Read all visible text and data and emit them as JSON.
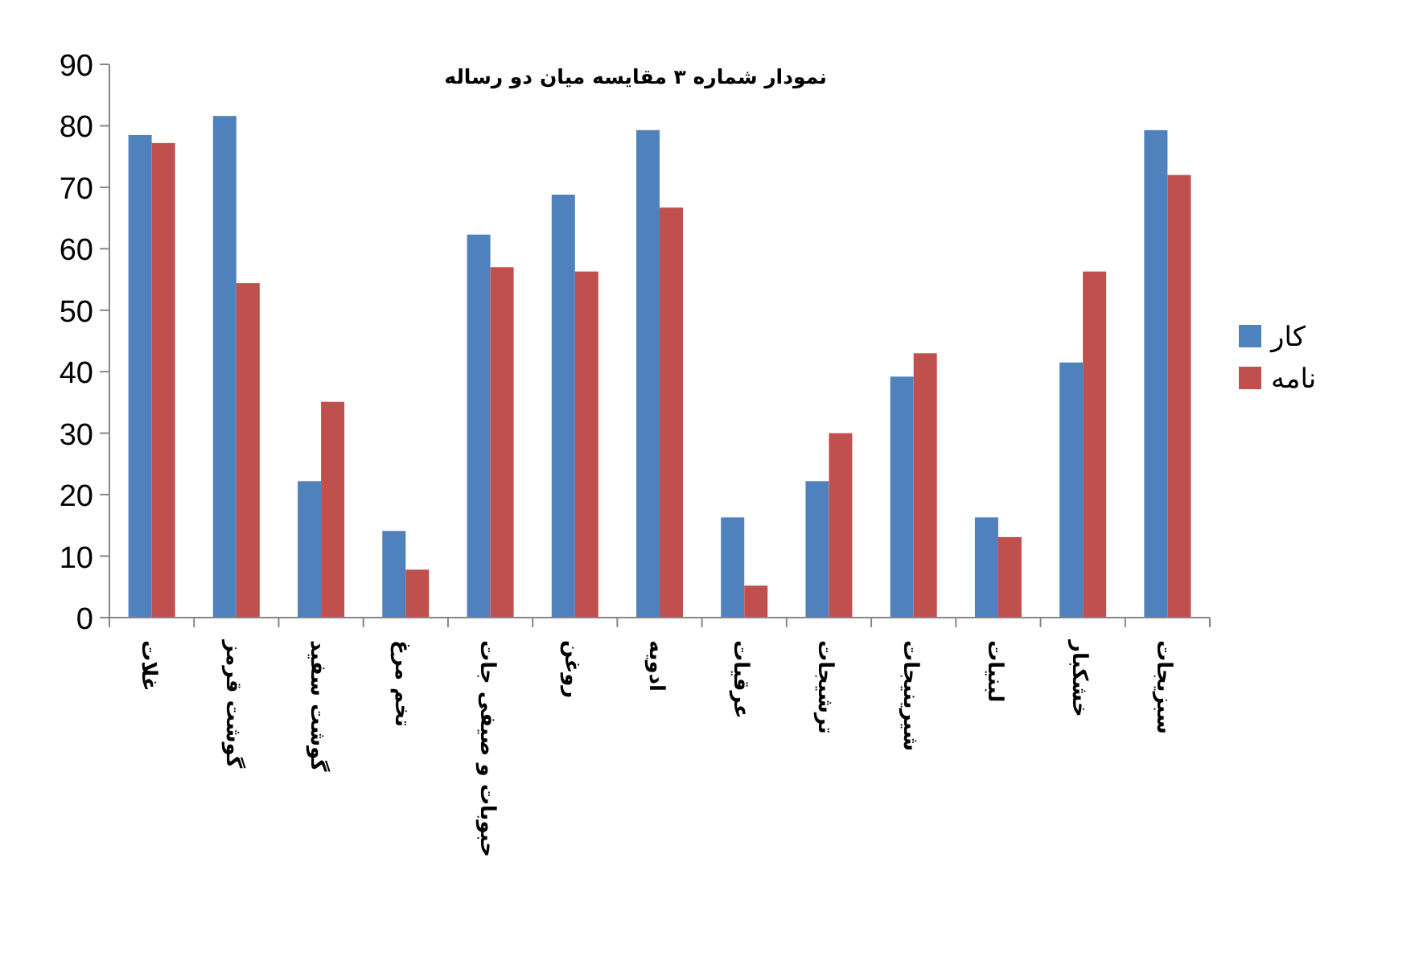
{
  "chart_data": {
    "type": "bar",
    "title": "نمودار شماره ۳ مقایسه میان دو رساله",
    "categories": [
      "غلات",
      "گوشت قرمز",
      "گوشت سفید",
      "تخم مرغ",
      "حبوبات و صیفی جات",
      "روغن",
      "ادویه",
      "عرقیات",
      "ترشیجات",
      "شیرینیجات",
      "لبنیات",
      "خشکبار",
      "سبزیجات"
    ],
    "series": [
      {
        "name": "کار",
        "color": "#4f81bd",
        "values": [
          78.5,
          81.6,
          22.2,
          14.1,
          62.3,
          68.8,
          79.3,
          16.3,
          22.2,
          39.2,
          16.3,
          41.5,
          79.3
        ]
      },
      {
        "name": "نامه",
        "color": "#c0504d",
        "values": [
          77.2,
          54.4,
          35.1,
          7.8,
          57.0,
          56.3,
          66.7,
          5.2,
          30.0,
          43.0,
          13.1,
          56.3,
          72.0
        ]
      }
    ],
    "ylim": [
      0,
      90
    ],
    "yticks": [
      0,
      10,
      20,
      30,
      40,
      50,
      60,
      70,
      80,
      90
    ],
    "grid": false,
    "legend": "right"
  }
}
